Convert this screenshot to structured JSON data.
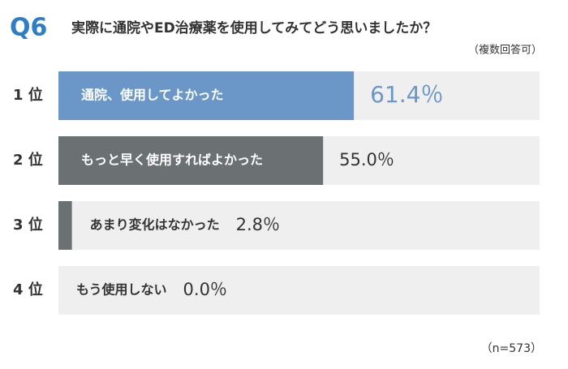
{
  "chart_data": {
    "type": "bar",
    "orientation": "horizontal",
    "question": "Q6",
    "title": "実際に通院やED治療薬を使用してみてどう思いましたか？",
    "subtitle": "（複数回答可）",
    "ranks": [
      "1 位",
      "2 位",
      "3 位",
      "4 位"
    ],
    "categories": [
      "通院、使用してよかった",
      "もっと早く使用すればよかった",
      "あまり変化はなかった",
      "もう使用しない"
    ],
    "values": [
      61.4,
      55.0,
      2.8,
      0.0
    ],
    "value_labels": [
      "61.4％",
      "55.0％",
      "2.8％",
      "0.0％"
    ],
    "colors": [
      "#6a96c8",
      "#6b7073",
      "#6b7073",
      "#6b7073"
    ],
    "track_color": "#efefef",
    "xlim": [
      0,
      100
    ],
    "note": "（n=573）"
  }
}
